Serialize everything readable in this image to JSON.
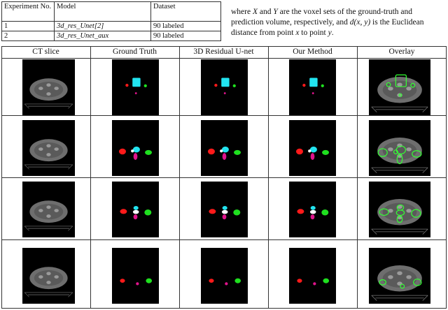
{
  "table": {
    "headers": [
      "Experiment No.",
      "Model",
      "Dataset"
    ],
    "rows": [
      [
        "1",
        "3d_res_Unet[2]",
        "90 labeled"
      ],
      [
        "2",
        "3d_res_Unet_aux",
        "90 labeled"
      ]
    ]
  },
  "paragraph": {
    "line1_pre": "where ",
    "line1_x": "X",
    "line1_mid": " and ",
    "line1_y": "Y",
    "line1_post": " are the voxel sets of the ground-truth and",
    "line2_pre": "prediction volume, respectively, and ",
    "line2_d": "d(x, y)",
    "line2_post": " is the Euclidean",
    "line3_pre": "distance from point ",
    "line3_x": "x",
    "line3_mid": " to point ",
    "line3_y": "y",
    "line3_post": "."
  },
  "figure": {
    "columns": [
      "CT slice",
      "Ground Truth",
      "3D Residual U-net",
      "Our Method",
      "Overlay"
    ],
    "colors": {
      "red": "#ff1a1a",
      "cyan": "#22e4f0",
      "magenta": "#e0148c",
      "green": "#1fe01f",
      "white": "#ffffff",
      "outline": "#33ff33",
      "ct": "#6e6e6e"
    }
  }
}
